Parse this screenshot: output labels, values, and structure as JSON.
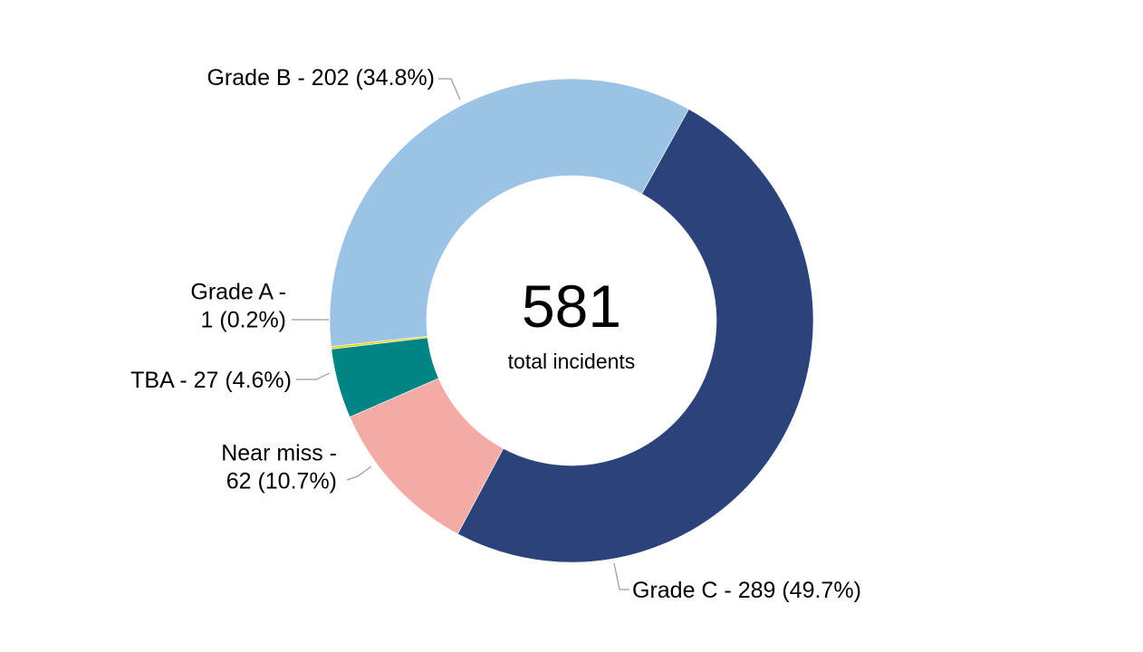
{
  "chart_data": {
    "type": "pie",
    "variant": "donut",
    "center": {
      "total": "581",
      "caption": "total incidents"
    },
    "slices": [
      {
        "name": "Grade C",
        "value": 289,
        "percent": 49.7,
        "color": "#2b437a",
        "label_lines": [
          "Grade C - 289 (49.7%)"
        ]
      },
      {
        "name": "Near miss",
        "value": 62,
        "percent": 10.7,
        "color": "#f5aba5",
        "label_lines": [
          "Near miss -",
          "62 (10.7%)"
        ]
      },
      {
        "name": "TBA",
        "value": 27,
        "percent": 4.6,
        "color": "#008484",
        "label_lines": [
          "TBA - 27 (4.6%)"
        ]
      },
      {
        "name": "Grade A",
        "value": 1,
        "percent": 0.2,
        "color": "#e0d81c",
        "label_lines": [
          "Grade A -",
          "1 (0.2%)"
        ]
      },
      {
        "name": "Grade B",
        "value": 202,
        "percent": 34.8,
        "color": "#9bc3e6",
        "label_lines": [
          "Grade B - 202 (34.8%)"
        ]
      }
    ],
    "start_angle_deg": 29,
    "direction": "clockwise",
    "legend": "none"
  }
}
